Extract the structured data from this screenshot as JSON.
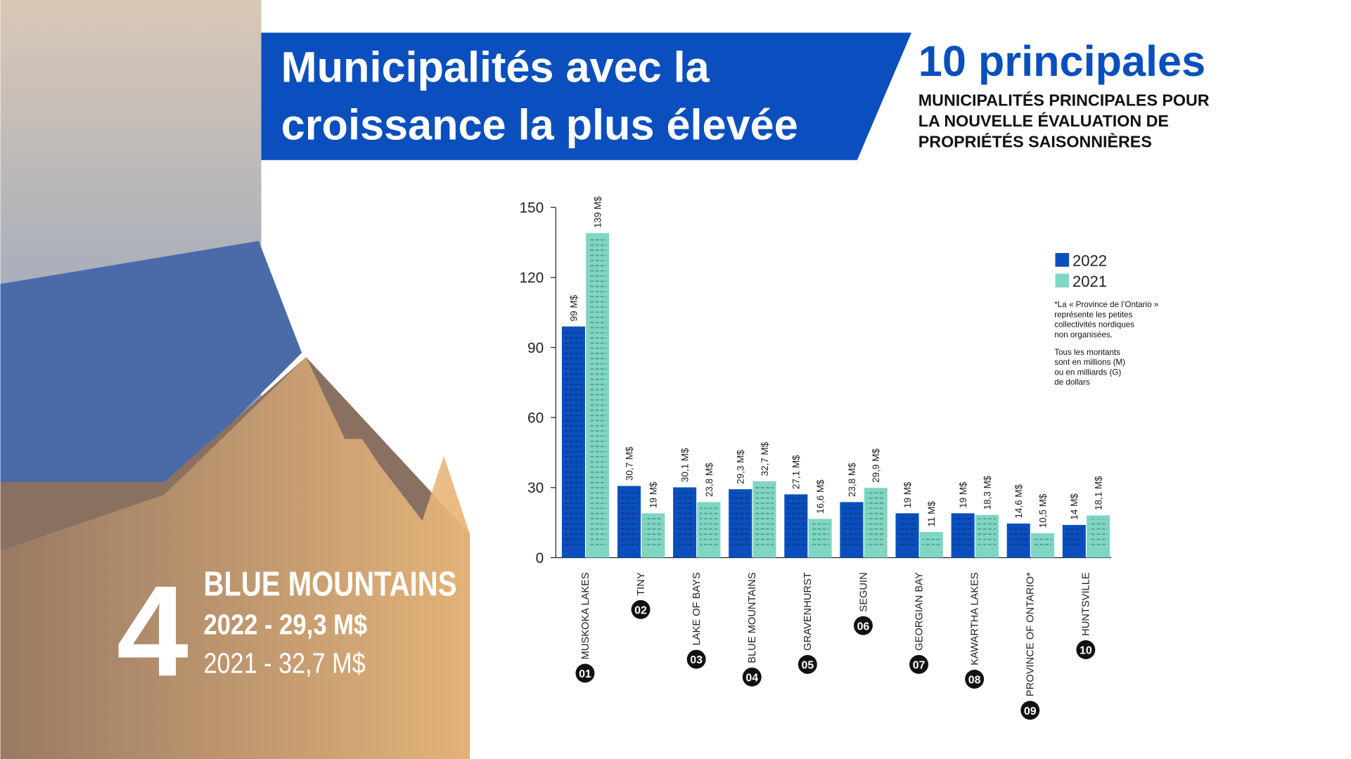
{
  "header": {
    "title_lines": [
      "Municipalités avec la",
      "croissance la plus élevée"
    ],
    "top_label": "10 principales",
    "subtitle_lines": [
      "MUNICIPALITÉS PRINCIPALES POUR",
      "LA NOUVELLE ÉVALUATION DE",
      "PROPRIÉTÉS SAISONNIÈRES"
    ]
  },
  "highlight": {
    "rank": "4",
    "name": "BLUE MOUNTAINS",
    "line_2022": "2022 - 29,3 M$",
    "line_2021": "2021 - 32,7 M$"
  },
  "chart_data": {
    "type": "bar",
    "categories": [
      "MUSKOKA LAKES",
      "TINY",
      "LAKE OF BAYS",
      "BLUE MOUNTAINS",
      "GRAVENHURST",
      "SEGUIN",
      "GEORGIAN BAY",
      "KAWARTHA LAKES",
      "PROVINCE OF ONTARIO*",
      "HUNTSVILLE"
    ],
    "ranks": [
      "01",
      "02",
      "03",
      "04",
      "05",
      "06",
      "07",
      "08",
      "09",
      "10"
    ],
    "series": [
      {
        "name": "2022",
        "color": "#0a4fbd",
        "values": [
          99,
          30.7,
          30.1,
          29.3,
          27.1,
          23.8,
          19,
          19,
          14.6,
          14
        ],
        "value_labels": [
          "99 M$",
          "30,7 M$",
          "30,1 M$",
          "29,3 M$",
          "27,1 M$",
          "23,8 M$",
          "19 M$",
          "19 M$",
          "14,6 M$",
          "14 M$"
        ]
      },
      {
        "name": "2021",
        "color": "#7fd6c2",
        "values": [
          139,
          19,
          23.8,
          32.7,
          16.6,
          29.9,
          11,
          18.3,
          10.5,
          18.1
        ],
        "value_labels": [
          "139 M$",
          "19 M$",
          "23,8 M$",
          "32,7 M$",
          "16,6 M$",
          "29,9 M$",
          "11 M$",
          "18,3 M$",
          "10,5 M$",
          "18,1 M$"
        ]
      }
    ],
    "ylim": [
      0,
      150
    ],
    "yticks": [
      0,
      30,
      60,
      90,
      120,
      150
    ],
    "notes": [
      [
        "*La « Province de l’Ontario »",
        "représente les petites",
        "collectivités nordiques",
        "non organisées."
      ],
      [
        "Tous les montants",
        "sont en millions (M)",
        "ou en milliards (G)",
        "de dollars"
      ]
    ]
  }
}
